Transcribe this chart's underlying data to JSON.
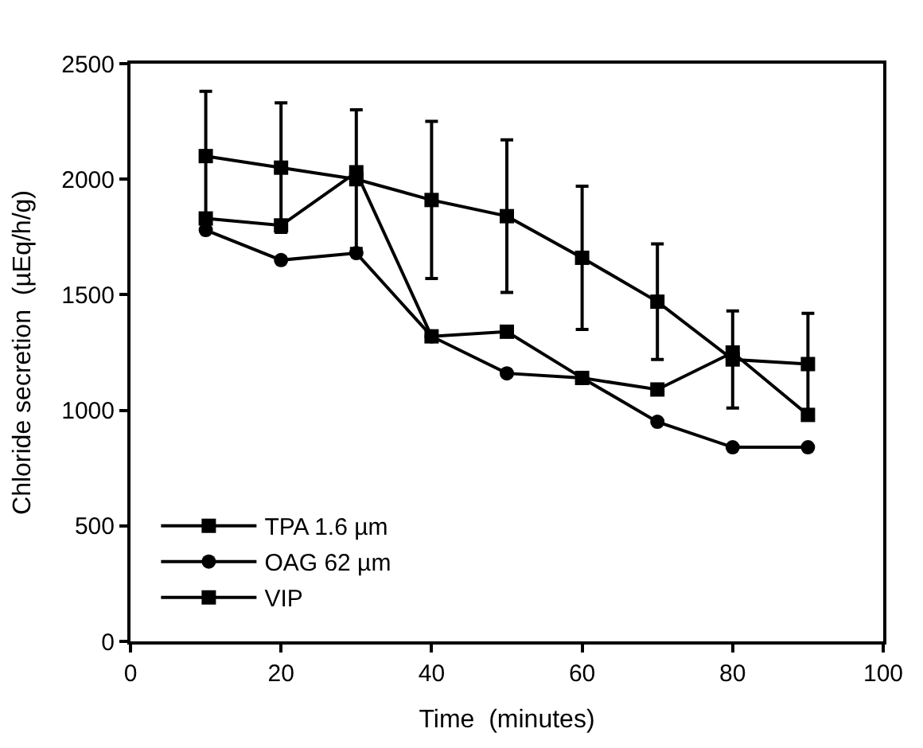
{
  "chart_data": {
    "type": "line",
    "xlabel": "Time  (minutes)",
    "ylabel": "Chloride secretion  (µEq/h/g)",
    "x": [
      10,
      20,
      30,
      40,
      50,
      60,
      70,
      80,
      90
    ],
    "series": [
      {
        "name": "TPA 1.6 µm",
        "color": "#000000",
        "marker": "square",
        "values": [
          1830,
          1800,
          2030,
          1320,
          1340,
          1140,
          1090,
          1250,
          980
        ]
      },
      {
        "name": "OAG 62 µm",
        "color": "#000000",
        "marker": "circle",
        "values": [
          1780,
          1650,
          1680,
          1320,
          1160,
          1140,
          950,
          840,
          840
        ]
      },
      {
        "name": "VIP",
        "color": "#000000",
        "marker": "square",
        "values": [
          2100,
          2050,
          2000,
          1910,
          1840,
          1660,
          1470,
          1220,
          1200
        ],
        "errors": [
          280,
          280,
          300,
          340,
          330,
          310,
          250,
          210,
          220
        ]
      }
    ],
    "xlim": [
      0,
      100
    ],
    "xticks": [
      0,
      20,
      40,
      60,
      80,
      100
    ],
    "ylim": [
      0,
      2500
    ],
    "yticks": [
      0,
      500,
      1000,
      1500,
      2000,
      2500
    ],
    "legend": "bottom left",
    "line_style": "solid"
  }
}
